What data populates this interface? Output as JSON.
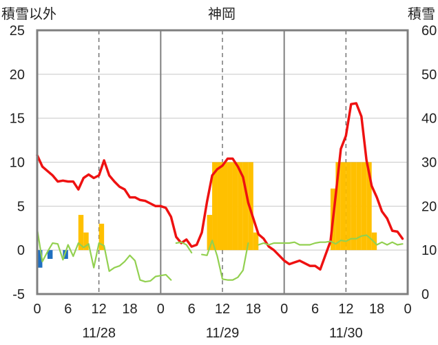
{
  "chart_data": {
    "type": "bar",
    "title": "神岡",
    "left_axis_label": "積雪以外",
    "right_axis_label": "積雪",
    "left_ylim": [
      -5,
      25
    ],
    "left_yticks": [
      "-5",
      "0",
      "5",
      "10",
      "15",
      "20",
      "25"
    ],
    "right_ylim": [
      0,
      60
    ],
    "right_yticks": [
      "0",
      "10",
      "20",
      "30",
      "40",
      "50",
      "60"
    ],
    "x_range_hours": [
      0,
      72
    ],
    "x_tick_labels": [
      "0",
      "6",
      "12",
      "18",
      "0",
      "6",
      "12",
      "18",
      "0",
      "6",
      "12",
      "18",
      "0"
    ],
    "date_labels": [
      "11/28",
      "11/29",
      "11/30"
    ],
    "grid": true,
    "colors": {
      "temperature": "#ee1111",
      "sunshine": "#92d050",
      "precipitation": "#ffc000",
      "negative_bar": "#1f6fc0",
      "snow_depth": "#7030a0",
      "frame": "#7f7f7f"
    },
    "series": [
      {
        "name": "",
        "kind": "bar",
        "axis": "left",
        "color": "#ffc000",
        "x": [
          8.5,
          9.5,
          12.5,
          33.5,
          34.5,
          35.5,
          36.5,
          37.5,
          38.5,
          39.5,
          40.5,
          41.5,
          42.5,
          57.5,
          58.5,
          59.5,
          60.5,
          61.5,
          62.5,
          63.5,
          64.5,
          65.5
        ],
        "values": [
          4,
          2,
          3,
          4,
          10,
          10,
          10,
          10,
          10,
          10,
          10,
          10,
          2,
          7,
          10,
          10,
          10,
          10,
          10,
          10,
          10,
          2
        ]
      },
      {
        "name": "",
        "kind": "bar",
        "axis": "left",
        "color": "#1f6fc0",
        "x": [
          0.5,
          2.5,
          5.5
        ],
        "values": [
          -2,
          -1,
          -1
        ]
      },
      {
        "name": "",
        "kind": "line",
        "axis": "left",
        "color": "#ee1111",
        "x": [
          0,
          1,
          2,
          3,
          4,
          5,
          6,
          7,
          8,
          9,
          10,
          11,
          12,
          13,
          14,
          15,
          16,
          17,
          18,
          19,
          20,
          21,
          22,
          23,
          24,
          25,
          26,
          27,
          28,
          29,
          30,
          31,
          32,
          33,
          34,
          35,
          36,
          37,
          38,
          39,
          40,
          41,
          42,
          43,
          44,
          45,
          46,
          47,
          48,
          49,
          50,
          51,
          52,
          53,
          54,
          55,
          56,
          57,
          58,
          59,
          60,
          61,
          62,
          63,
          64,
          65,
          66,
          67,
          68,
          69,
          70,
          71
        ],
        "values": [
          10.8,
          9.5,
          9.0,
          8.5,
          7.8,
          7.9,
          7.8,
          7.8,
          6.9,
          8.2,
          8.6,
          8.2,
          8.5,
          10.2,
          8.5,
          7.8,
          7.2,
          6.9,
          6.0,
          6.0,
          5.7,
          5.6,
          5.3,
          5.0,
          5.0,
          4.8,
          3.8,
          1.5,
          0.8,
          1.2,
          0.4,
          0.6,
          2.0,
          5.5,
          8.5,
          9.2,
          9.6,
          10.4,
          10.4,
          9.5,
          8.3,
          5.4,
          3.6,
          1.8,
          1.3,
          0.4,
          0.0,
          -0.6,
          -1.2,
          -1.6,
          -1.4,
          -1.2,
          -1.5,
          -1.8,
          -1.8,
          -2.2,
          -0.6,
          1.0,
          6.2,
          11.5,
          13.0,
          16.6,
          16.7,
          15.2,
          10.2,
          7.3,
          6.0,
          4.4,
          3.6,
          2.2,
          2.1,
          1.3
        ]
      },
      {
        "name": "",
        "kind": "line",
        "axis": "left",
        "color": "#92d050",
        "segments": [
          {
            "x": [
              0,
              1,
              2,
              3,
              4,
              5,
              6,
              7,
              8,
              9,
              10,
              11,
              12,
              13,
              14,
              15,
              16,
              17,
              18,
              19,
              20,
              21,
              22,
              23,
              24,
              25,
              26
            ],
            "values": [
              2.4,
              -1.3,
              -0.2,
              0.8,
              0.7,
              -1.1,
              0.6,
              -0.7,
              0.8,
              0.3,
              0.7,
              -2.0,
              0.8,
              0.5,
              -2.4,
              -2.0,
              -1.8,
              -1.3,
              -0.6,
              -1.2,
              -3.4,
              -3.6,
              -3.5,
              -3.0,
              -2.9,
              -2.8,
              -3.4
            ]
          },
          {
            "x": [
              27,
              28,
              29,
              30
            ],
            "values": [
              0.8,
              0.9,
              0.6,
              -0.3
            ]
          },
          {
            "x": [
              32,
              33,
              34,
              35,
              36,
              37,
              38,
              39,
              40,
              41
            ],
            "values": [
              -0.5,
              -0.6,
              1.1,
              -0.7,
              -3.3,
              -3.4,
              -3.4,
              -3.1,
              -2.3,
              0.8
            ]
          },
          {
            "x": [
              43,
              44,
              45,
              46,
              47,
              48,
              49,
              50,
              51,
              52,
              53,
              54,
              55,
              56,
              57,
              58,
              59,
              60,
              61,
              62,
              63,
              64,
              65,
              66,
              67,
              68,
              69,
              70,
              71
            ],
            "values": [
              0.6,
              0.8,
              0.6,
              0.8,
              0.8,
              0.8,
              0.8,
              0.9,
              0.6,
              0.6,
              0.6,
              0.8,
              0.9,
              0.9,
              1.0,
              0.7,
              1.1,
              1.0,
              1.3,
              1.3,
              1.6,
              1.7,
              1.2,
              0.6,
              0.9,
              0.6,
              0.9,
              0.6,
              0.7
            ]
          }
        ]
      },
      {
        "name": "",
        "kind": "line",
        "axis": "right",
        "color": "#7030a0",
        "x": [
          0,
          72
        ],
        "values": [
          0,
          0
        ]
      }
    ]
  }
}
